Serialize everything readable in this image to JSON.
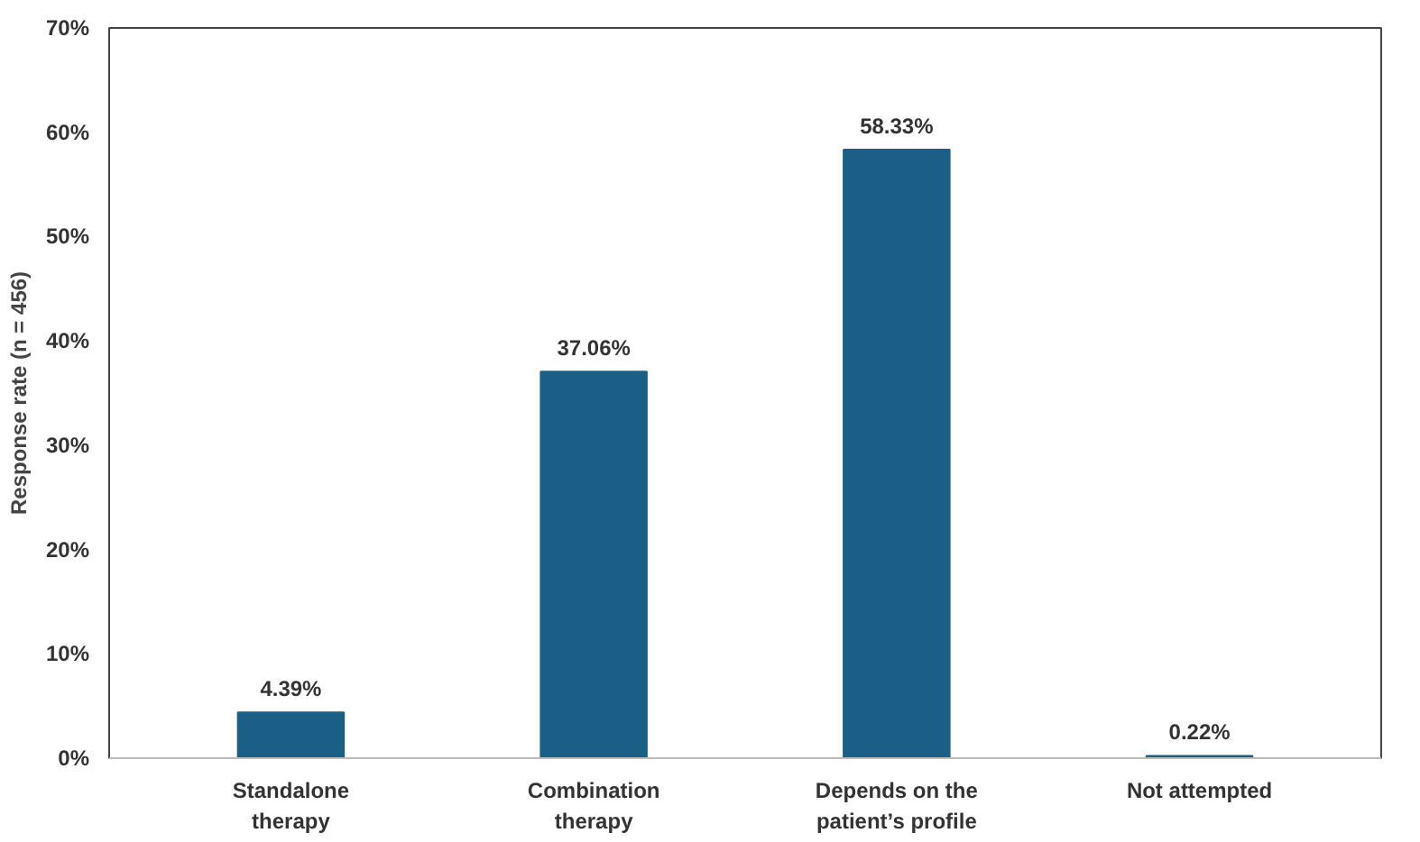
{
  "chart_data": {
    "type": "bar",
    "categories": [
      "Standalone therapy",
      "Combination therapy",
      "Depends on the patient’s profile",
      "Not attempted"
    ],
    "values": [
      4.39,
      37.06,
      58.33,
      0.22
    ],
    "value_labels": [
      "4.39%",
      "37.06%",
      "58.33%",
      "0.22%"
    ],
    "color": "#1b5f86",
    "ylabel": "Response rate (n = 456)",
    "ylim": [
      0,
      70
    ],
    "yticks": [
      {
        "value": 0,
        "label": "0%"
      },
      {
        "value": 10,
        "label": "10%"
      },
      {
        "value": 20,
        "label": "20%"
      },
      {
        "value": 30,
        "label": "30%"
      },
      {
        "value": 40,
        "label": "40%"
      },
      {
        "value": 50,
        "label": "50%"
      },
      {
        "value": 60,
        "label": "60%"
      },
      {
        "value": 70,
        "label": "70%"
      }
    ],
    "grid": false
  }
}
